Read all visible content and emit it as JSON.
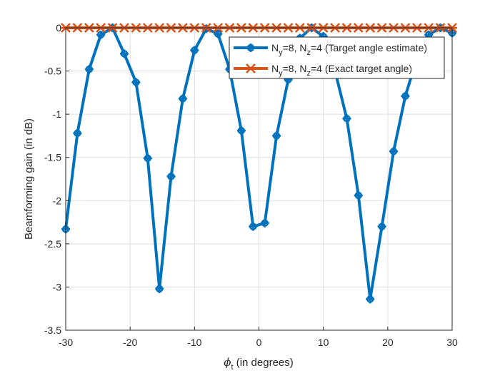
{
  "chart_data": {
    "type": "line",
    "title": "",
    "xlabel": "(in degrees)",
    "xlabel_symbol": "ϕ",
    "xlabel_subscript": "t",
    "ylabel": "Beamforming gain (in dB)",
    "xlim": [
      -30,
      30
    ],
    "ylim": [
      -3.5,
      0
    ],
    "xticks": [
      "-30",
      "-20",
      "-10",
      "0",
      "10",
      "20",
      "30"
    ],
    "yticks": [
      "0",
      "-0.5",
      "-1",
      "-1.5",
      "-2",
      "-2.5",
      "-3",
      "-3.5"
    ],
    "grid": true,
    "legend_position": "top-right",
    "x": [
      -30,
      -28.18,
      -26.36,
      -24.55,
      -22.73,
      -20.91,
      -19.09,
      -17.27,
      -15.45,
      -13.64,
      -11.82,
      -10,
      -8.18,
      -6.36,
      -4.55,
      -2.73,
      -0.91,
      0.91,
      2.73,
      4.55,
      6.36,
      8.18,
      10,
      11.82,
      13.64,
      15.45,
      17.27,
      19.09,
      20.91,
      22.73,
      24.55,
      26.36,
      28.18,
      30
    ],
    "series": [
      {
        "name": "Target angle estimate",
        "legend": {
          "pre": "N",
          "sub1": "y",
          "mid": "=8, N",
          "sub2": "z",
          "post": "=4 (Target angle estimate)"
        },
        "color": "#0072BD",
        "marker": "plus-circle",
        "values": [
          -2.33,
          -1.22,
          -0.48,
          -0.08,
          0.0,
          -0.3,
          -0.63,
          -1.51,
          -3.02,
          -1.72,
          -0.82,
          -0.26,
          -0.01,
          -0.07,
          -0.48,
          -1.19,
          -2.3,
          -2.26,
          -1.25,
          -0.6,
          -0.12,
          0.0,
          -0.1,
          -0.5,
          -1.05,
          -1.94,
          -3.14,
          -2.3,
          -1.43,
          -0.79,
          -0.35,
          -0.08,
          0.0,
          -0.06
        ]
      },
      {
        "name": "Exact target angle",
        "legend": {
          "pre": "N",
          "sub1": "y",
          "mid": "=8, N",
          "sub2": "z",
          "post": "=4 (Exact target angle)"
        },
        "color": "#D95319",
        "marker": "x-star",
        "values": [
          0,
          0,
          0,
          0,
          0,
          0,
          0,
          0,
          0,
          0,
          0,
          0,
          0,
          0,
          0,
          0,
          0,
          0,
          0,
          0,
          0,
          0,
          0,
          0,
          0,
          0,
          0,
          0,
          0,
          0,
          0,
          0,
          0,
          0
        ]
      }
    ]
  }
}
